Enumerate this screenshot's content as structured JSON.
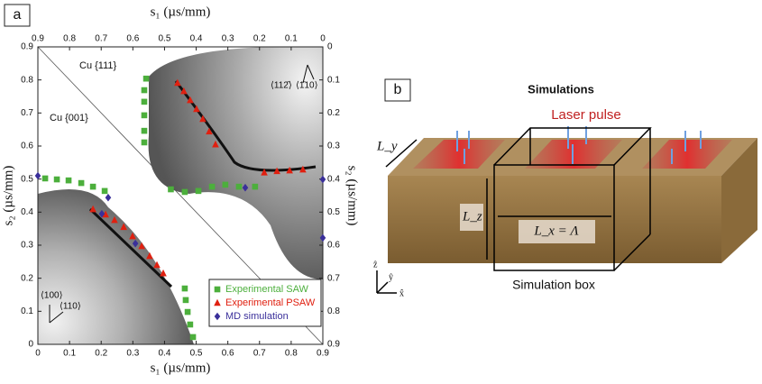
{
  "chart_data": {
    "type": "scatter",
    "panel_label": "a",
    "x_label": "s₁ (µs/mm)",
    "y_label": "s₂ (µs/mm)",
    "x2_label": "s₁ (µs/mm)",
    "y2_label": "s₂ (µs/mm)",
    "xlim": [
      0,
      0.9
    ],
    "ylim": [
      0,
      0.9
    ],
    "x2lim": [
      0.9,
      0
    ],
    "y2lim": [
      0,
      0.9
    ],
    "xticks": [
      0,
      0.1,
      0.2,
      0.3,
      0.4,
      0.5,
      0.6,
      0.7,
      0.8,
      0.9
    ],
    "yticks": [
      0,
      0.1,
      0.2,
      0.3,
      0.4,
      0.5,
      0.6,
      0.7,
      0.8,
      0.9
    ],
    "x2ticks": [
      0.9,
      0.8,
      0.7,
      0.6,
      0.5,
      0.4,
      0.3,
      0.2,
      0.1,
      0
    ],
    "y2ticks": [
      0,
      0.1,
      0.2,
      0.3,
      0.4,
      0.5,
      0.6,
      0.7,
      0.8,
      0.9
    ],
    "annotations": [
      "Cu {111}",
      "Cu {001}",
      "⟨100⟩",
      "⟨110⟩",
      "⟨112̄⟩",
      "⟨1̄10⟩"
    ],
    "legend": "lower right",
    "series": [
      {
        "name": "Experimental SAW",
        "color": "#4caf3c",
        "marker": "square",
        "x": [
          0.023,
          0.06,
          0.097,
          0.137,
          0.174,
          0.211,
          0.42,
          0.464,
          0.507,
          0.55,
          0.592,
          0.635,
          0.686,
          0.342,
          0.336,
          0.336,
          0.336,
          0.336,
          0.336,
          0.464,
          0.467,
          0.473,
          0.481,
          0.49
        ],
        "values": [
          0.502,
          0.499,
          0.496,
          0.488,
          0.477,
          0.464,
          0.469,
          0.461,
          0.464,
          0.477,
          0.483,
          0.477,
          0.477,
          0.804,
          0.769,
          0.734,
          0.693,
          0.646,
          0.611,
          0.169,
          0.134,
          0.098,
          0.06,
          0.022
        ]
      },
      {
        "name": "Experimental PSAW",
        "color": "#e02010",
        "marker": "triangle",
        "x": [
          0.174,
          0.214,
          0.242,
          0.271,
          0.299,
          0.328,
          0.353,
          0.376,
          0.396,
          0.441,
          0.461,
          0.481,
          0.501,
          0.521,
          0.541,
          0.561,
          0.715,
          0.755,
          0.795,
          0.837
        ],
        "values": [
          0.409,
          0.393,
          0.376,
          0.355,
          0.327,
          0.297,
          0.267,
          0.24,
          0.215,
          0.791,
          0.766,
          0.739,
          0.712,
          0.682,
          0.644,
          0.605,
          0.52,
          0.524,
          0.526,
          0.529
        ]
      },
      {
        "name": "MD simulation",
        "color": "#3a2f9a",
        "marker": "diamond",
        "x": [
          0,
          0.222,
          0.202,
          0.308,
          0.655,
          0.9,
          0.9
        ],
        "values": [
          0.51,
          0.444,
          0.395,
          0.305,
          0.474,
          0.499,
          0.322
        ]
      }
    ]
  },
  "panel_b": {
    "panel_label": "b",
    "title": "Simulations",
    "laser": "Laser pulse",
    "ly": "L_y",
    "lz": "L_z",
    "lx": "L_x = Λ",
    "box": "Simulation box",
    "axes": [
      "ẑ",
      "ŷ",
      "x̂"
    ]
  }
}
